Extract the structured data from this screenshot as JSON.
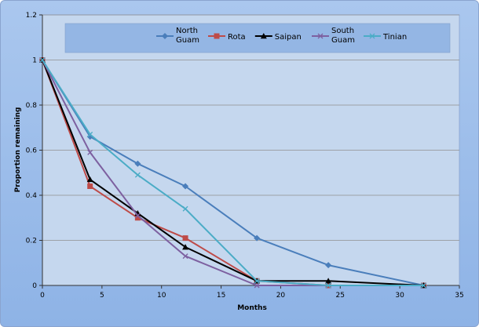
{
  "chart_data": {
    "type": "line",
    "title": "",
    "xlabel": "Months",
    "ylabel": "Proportion remaining",
    "xlim": [
      0,
      35
    ],
    "ylim": [
      0,
      1.2
    ],
    "x_ticks": [
      "0",
      "5",
      "10",
      "15",
      "20",
      "25",
      "30",
      "35"
    ],
    "y_ticks": [
      "0",
      "0.2",
      "0.4",
      "0.6",
      "0.8",
      "1",
      "1.2"
    ],
    "grid": "horizontal",
    "legend_position": "top",
    "series": [
      {
        "name": "North Guam",
        "legend_lines": [
          "North",
          "Guam"
        ],
        "color": "#4a7ebb",
        "marker": "diamond",
        "x": [
          0,
          4,
          8,
          12,
          18,
          24,
          32
        ],
        "y": [
          1.0,
          0.66,
          0.54,
          0.44,
          0.21,
          0.09,
          0.0
        ]
      },
      {
        "name": "Rota",
        "legend_lines": [
          "Rota"
        ],
        "color": "#be4b48",
        "marker": "square",
        "x": [
          0,
          4,
          8,
          12,
          18,
          24,
          32
        ],
        "y": [
          1.0,
          0.44,
          0.3,
          0.21,
          0.02,
          0.0,
          0.0
        ]
      },
      {
        "name": "Saipan",
        "legend_lines": [
          "Saipan"
        ],
        "color": "#000000",
        "marker": "triangle",
        "x": [
          0,
          4,
          8,
          12,
          18,
          24,
          32
        ],
        "y": [
          1.0,
          0.47,
          0.32,
          0.17,
          0.02,
          0.02,
          0.0
        ]
      },
      {
        "name": "South Guam",
        "legend_lines": [
          "South",
          "Guam"
        ],
        "color": "#7d60a0",
        "marker": "x",
        "x": [
          0,
          4,
          8,
          12,
          18,
          24,
          32
        ],
        "y": [
          1.0,
          0.59,
          0.31,
          0.13,
          0.0,
          0.0,
          0.0
        ]
      },
      {
        "name": "Tinian",
        "legend_lines": [
          "Tinian"
        ],
        "color": "#4bacc6",
        "marker": "x",
        "x": [
          0,
          4,
          8,
          12,
          18,
          24,
          32
        ],
        "y": [
          1.0,
          0.67,
          0.49,
          0.34,
          0.02,
          0.0,
          0.0
        ]
      }
    ]
  }
}
